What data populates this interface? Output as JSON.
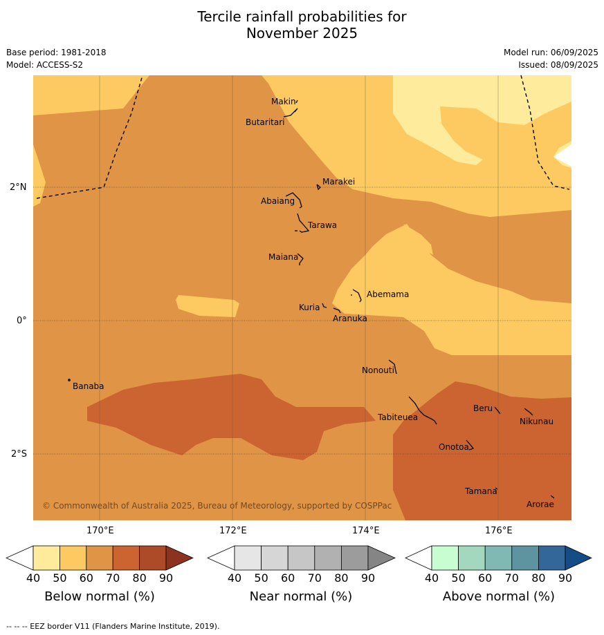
{
  "title_line1": "Tercile rainfall probabilities for",
  "title_line2": "November 2025",
  "base_period": "Base period: 1981-2018",
  "model": "Model: ACCESS-S2",
  "model_run": "Model run: 06/09/2025",
  "issued": "Issued: 08/09/2025",
  "copyright": "© Commonwealth of Australia 2025, Bureau of Meteorology, supported by COSPPac",
  "lon_labels": [
    "170°E",
    "172°E",
    "174°E",
    "176°E"
  ],
  "lat_labels": [
    "2°N",
    "0°",
    "2°S"
  ],
  "places": {
    "makin": "Makin",
    "butaritari": "Butaritari",
    "marakei": "Marakei",
    "abaiang": "Abaiang",
    "tarawa": "Tarawa",
    "maiana": "Maiana",
    "abemama": "Abemama",
    "kuria": "Kuria",
    "aranuka": "Aranuka",
    "nonouti": "Nonouti",
    "banaba": "Banaba",
    "tabiteuea": "Tabiteuea",
    "beru": "Beru",
    "nikunau": "Nikunau",
    "onotoa": "Onotoa",
    "tamana": "Tamana",
    "arorae": "Arorae"
  },
  "colorbars": [
    {
      "label": "Below normal (%)",
      "colors": [
        "#ffffff",
        "#ffeb9c",
        "#fdca62",
        "#e09445",
        "#cc6431",
        "#ad4b28",
        "#8c3220"
      ]
    },
    {
      "label": "Near normal (%)",
      "colors": [
        "#ffffff",
        "#e6e6e6",
        "#d6d6d6",
        "#c6c6c6",
        "#b1b1b1",
        "#9c9c9c",
        "#858585"
      ]
    },
    {
      "label": "Above normal (%)",
      "colors": [
        "#ffffff",
        "#c8fcd1",
        "#a4d8be",
        "#80b8b4",
        "#5d94a0",
        "#336699",
        "#134c86"
      ]
    }
  ],
  "tick_values": [
    "40",
    "50",
    "60",
    "70",
    "80",
    "90"
  ],
  "footnote": "--  --  -- EEZ border V11 (Flanders Marine Institute, 2019)."
}
